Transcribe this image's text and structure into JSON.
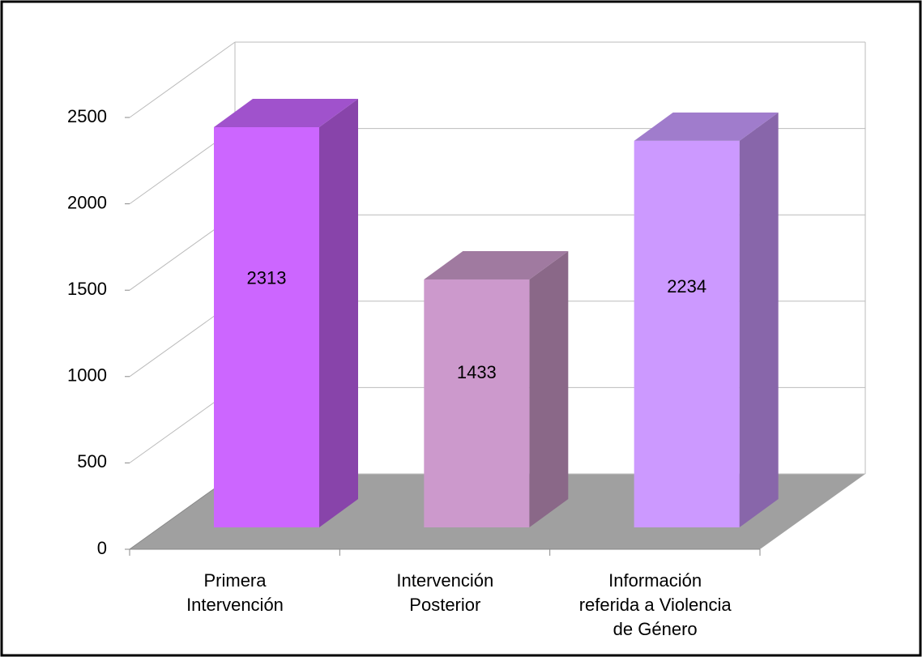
{
  "chart_data": {
    "type": "bar3d",
    "categories": [
      "Primera\nIntervención",
      "Intervención\nPosterior",
      "Información\nreferida a Violencia\nde Género"
    ],
    "values": [
      2313,
      1433,
      2234
    ],
    "colors": [
      {
        "front": "#cc66ff",
        "top": "#a052cc",
        "side": "#8844aa"
      },
      {
        "front": "#cc99cc",
        "top": "#a07aa0",
        "side": "#8a6888"
      },
      {
        "front": "#cc99ff",
        "top": "#a07ccc",
        "side": "#8866aa"
      }
    ],
    "ylim": [
      0,
      2500
    ],
    "yticks": [
      0,
      500,
      1000,
      1500,
      2000,
      2500
    ],
    "grid": true
  }
}
